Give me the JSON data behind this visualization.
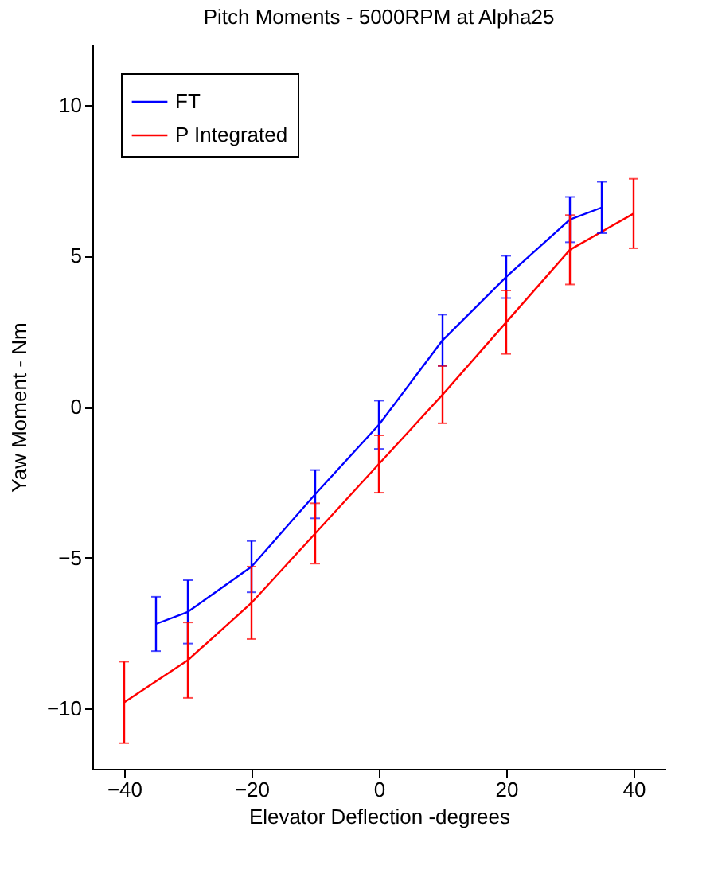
{
  "chart_data": {
    "type": "line",
    "title": "Pitch Moments - 5000RPM at Alpha25",
    "xlabel": "Elevator Deflection -degrees",
    "ylabel": "Yaw Moment - Nm",
    "xlim": [
      -45,
      45
    ],
    "ylim": [
      -12,
      12
    ],
    "xticks": [
      -40,
      -20,
      0,
      20,
      40
    ],
    "yticks": [
      -10,
      -5,
      0,
      5,
      10
    ],
    "grid": false,
    "legend": "top left",
    "line_style": "solid",
    "marker": "none",
    "series": [
      {
        "name": "FT",
        "color": "#0000ff",
        "x": [
          -35,
          -30,
          -20,
          -10,
          0,
          10,
          20,
          30,
          35
        ],
        "values": [
          -7.2,
          -6.8,
          -5.3,
          -2.9,
          -0.6,
          2.2,
          4.3,
          6.2,
          6.6
        ],
        "errors": [
          0.9,
          1.05,
          0.85,
          0.8,
          0.8,
          0.85,
          0.7,
          0.75,
          0.85
        ]
      },
      {
        "name": "P Integrated",
        "color": "#ff0000",
        "x": [
          -40,
          -30,
          -20,
          -10,
          0,
          10,
          20,
          30,
          40
        ],
        "values": [
          -9.8,
          -8.4,
          -6.5,
          -4.2,
          -1.9,
          0.4,
          2.8,
          5.2,
          6.4
        ],
        "errors": [
          1.35,
          1.25,
          1.2,
          1.0,
          0.95,
          0.95,
          1.05,
          1.15,
          1.15
        ]
      }
    ]
  }
}
